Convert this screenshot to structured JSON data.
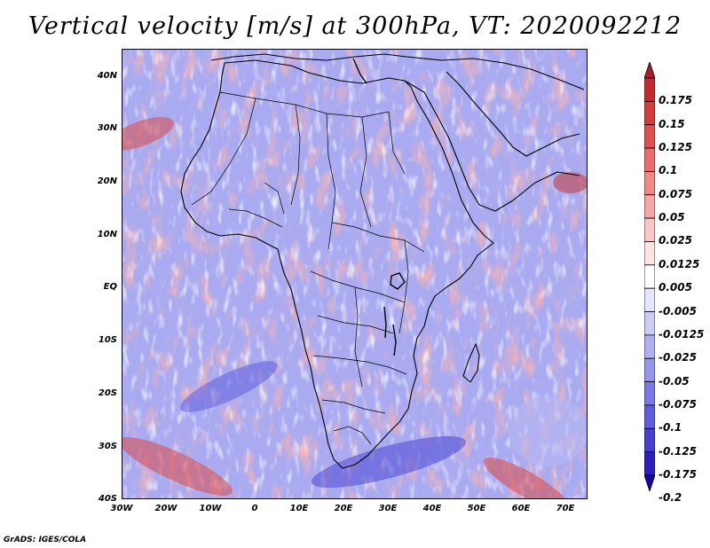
{
  "title": "Vertical velocity [m/s] at 300hPa, VT: 2020092212",
  "y_ticks": [
    "40N",
    "30N",
    "20N",
    "10N",
    "EQ",
    "10S",
    "20S",
    "30S",
    "40S"
  ],
  "x_ticks": [
    "30W",
    "20W",
    "10W",
    "0",
    "10E",
    "20E",
    "30E",
    "40E",
    "50E",
    "60E",
    "70E"
  ],
  "colorbar": {
    "labels": [
      "0.175",
      "0.15",
      "0.125",
      "0.1",
      "0.075",
      "0.05",
      "0.025",
      "0.0125",
      "0.005",
      "-0.005",
      "-0.0125",
      "-0.025",
      "-0.05",
      "-0.075",
      "-0.1",
      "-0.125",
      "-0.175",
      "-0.2"
    ],
    "colors": [
      "#b2182b",
      "#c42a2f",
      "#d43d3d",
      "#e05252",
      "#ea6c6c",
      "#f28888",
      "#f7a6a6",
      "#fbc6c6",
      "#fde4e4",
      "#ffffff",
      "#e6e6fb",
      "#cccdf7",
      "#b0b0f2",
      "#9596ed",
      "#7a7ae6",
      "#5f5edd",
      "#4540d0",
      "#2c1fbe",
      "#1a06a6"
    ]
  },
  "credit": "GrADS: IGES/COLA"
}
